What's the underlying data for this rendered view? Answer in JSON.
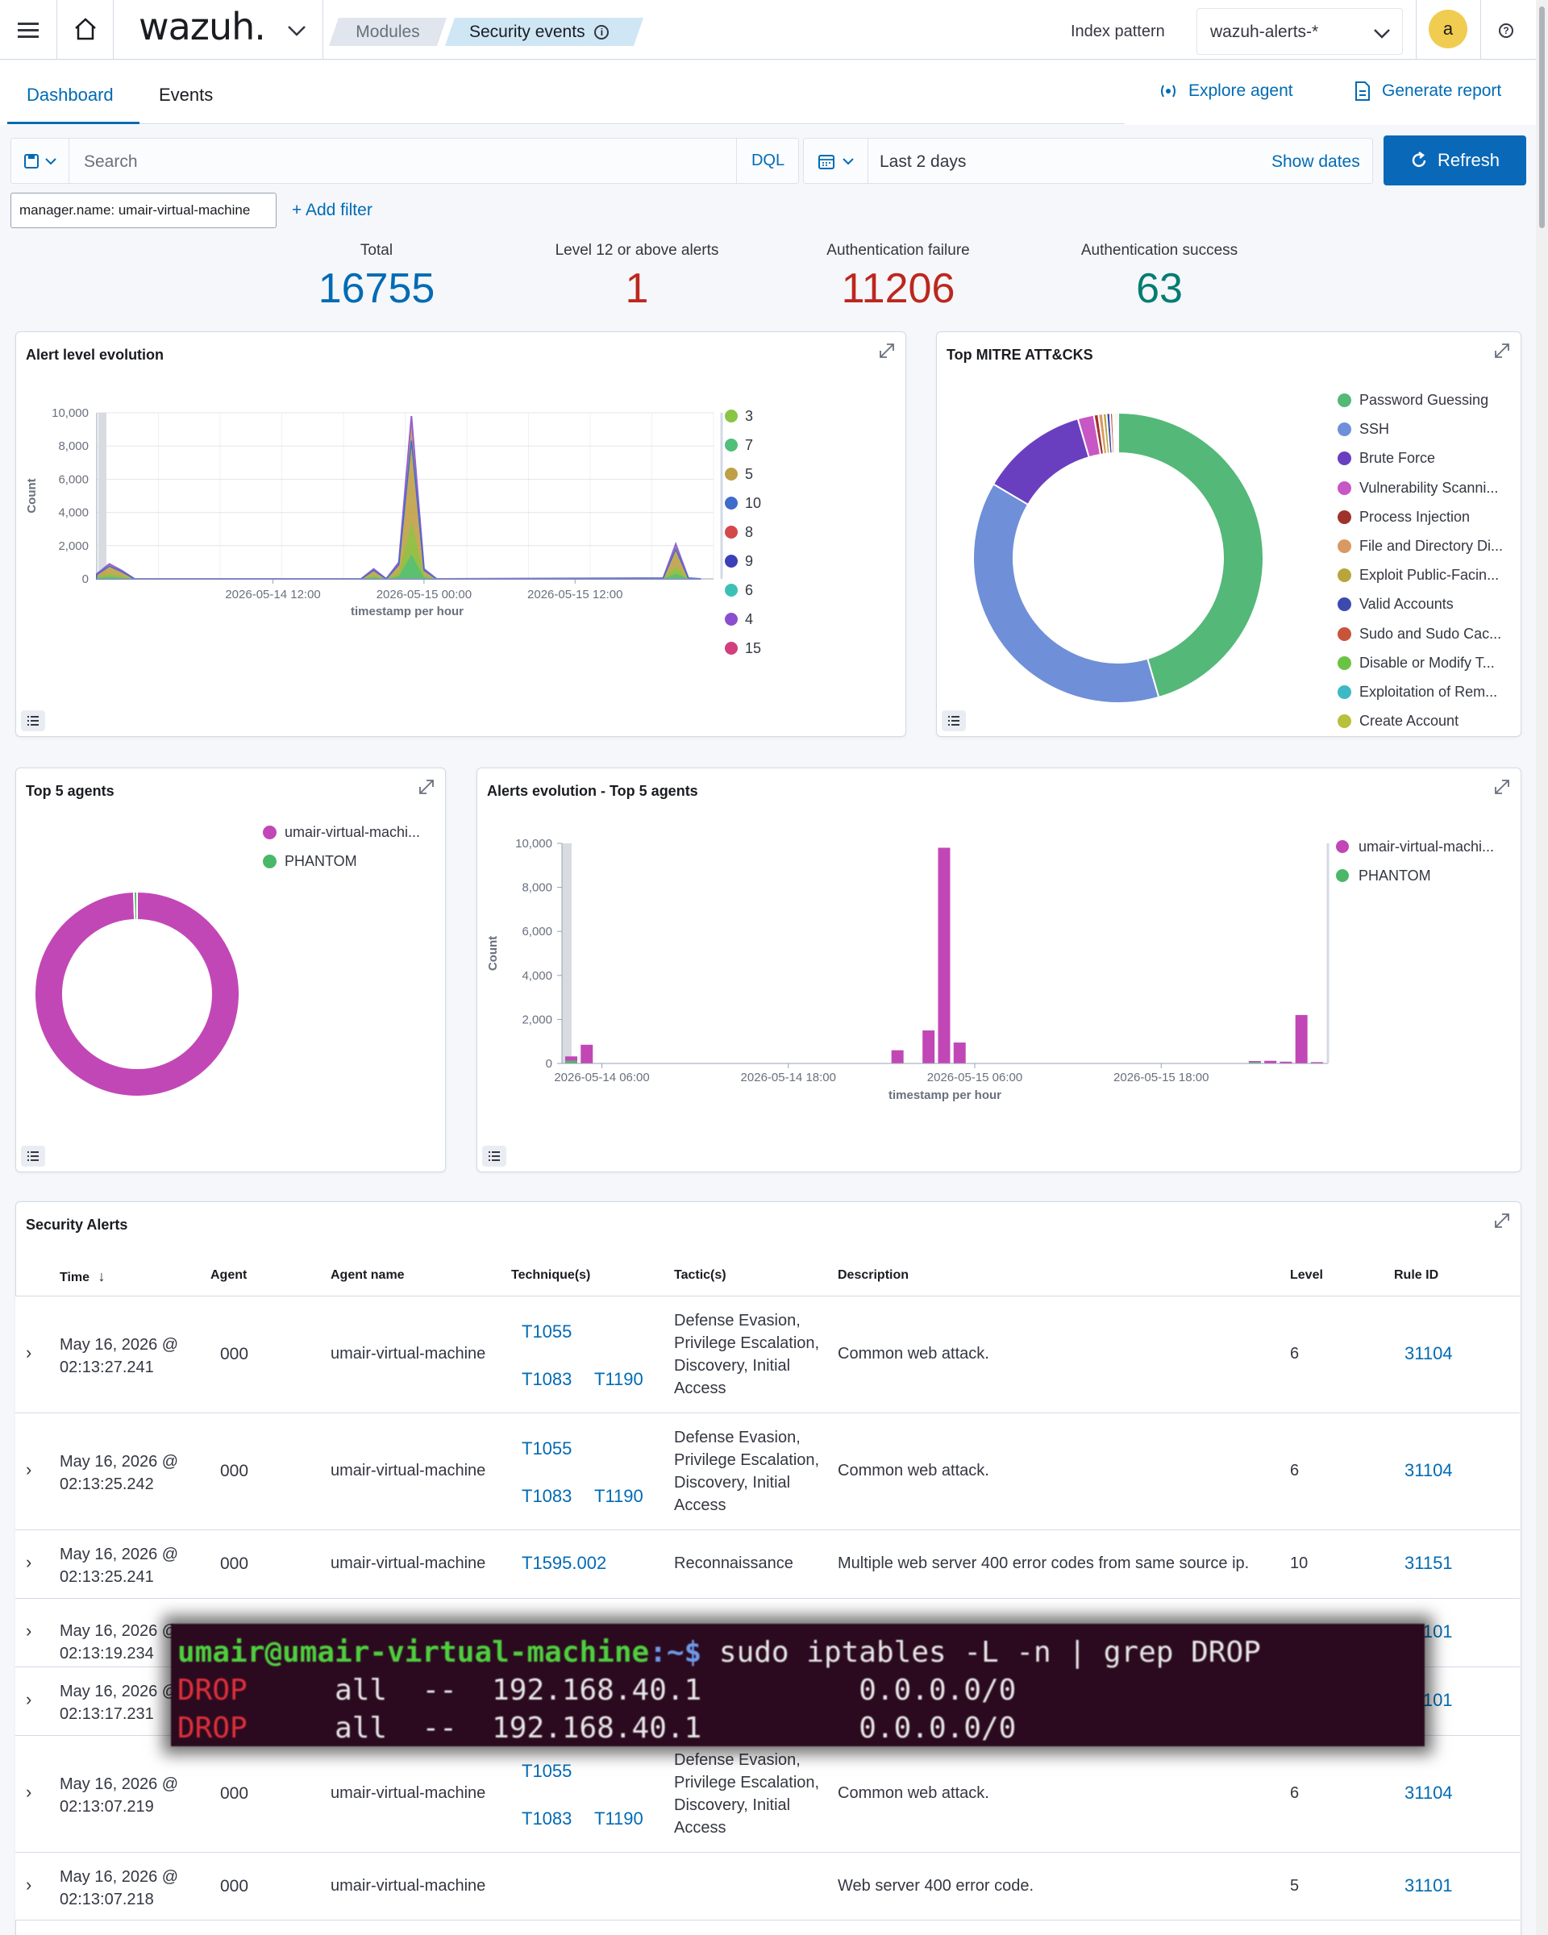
{
  "topbar": {
    "logo": "wazuh.",
    "breadcrumbs": [
      "Modules",
      "Security events"
    ],
    "index_pattern_label": "Index pattern",
    "index_pattern_value": "wazuh-alerts-*",
    "avatar": "a"
  },
  "tabs": {
    "dashboard": "Dashboard",
    "events": "Events",
    "active": "Dashboard"
  },
  "actions": {
    "explore_agent": "Explore agent",
    "generate_report": "Generate report"
  },
  "search": {
    "placeholder": "Search",
    "dql": "DQL",
    "date_range": "Last 2 days",
    "show_dates": "Show dates",
    "refresh": "Refresh"
  },
  "filters": {
    "active": "manager.name: umair-virtual-machine",
    "add": "+ Add filter"
  },
  "metrics": [
    {
      "label": "Total",
      "value": "16755",
      "color": "#006bb4"
    },
    {
      "label": "Level 12 or above alerts",
      "value": "1",
      "color": "#bd271e"
    },
    {
      "label": "Authentication failure",
      "value": "11206",
      "color": "#bd271e"
    },
    {
      "label": "Authentication success",
      "value": "63",
      "color": "#017d73"
    }
  ],
  "panels": {
    "alert_level": "Alert level evolution",
    "mitre": "Top MITRE ATT&CKS",
    "top_agents": "Top 5 agents",
    "agents_evolution": "Alerts evolution - Top 5 agents",
    "security_alerts": "Security Alerts"
  },
  "chart_data": [
    {
      "type": "area",
      "title": "Alert level evolution",
      "xlabel": "timestamp per hour",
      "ylabel": "Count",
      "ylim": [
        0,
        10000
      ],
      "yticks": [
        "0",
        "2,000",
        "4,000",
        "6,000",
        "8,000",
        "10,000"
      ],
      "xticks": [
        "2026-05-14 12:00",
        "2026-05-15 00:00",
        "2026-05-15 12:00"
      ],
      "legend": [
        {
          "name": "3",
          "color": "#8ac444"
        },
        {
          "name": "7",
          "color": "#4fbf7a"
        },
        {
          "name": "5",
          "color": "#c0a046"
        },
        {
          "name": "10",
          "color": "#3e6ccb"
        },
        {
          "name": "8",
          "color": "#d24a4a"
        },
        {
          "name": "9",
          "color": "#3b3fb8"
        },
        {
          "name": "6",
          "color": "#3cc0b5"
        },
        {
          "name": "4",
          "color": "#8a4fcf"
        },
        {
          "name": "15",
          "color": "#d13f7d"
        }
      ],
      "x_hours": [
        0,
        1,
        2,
        3,
        21,
        22,
        23,
        24,
        25,
        26,
        27,
        45,
        46,
        47,
        48
      ],
      "series_total": [
        300,
        900,
        500,
        0,
        0,
        600,
        0,
        1000,
        9800,
        600,
        0,
        50,
        2100,
        50,
        0
      ]
    },
    {
      "type": "pie",
      "title": "Top MITRE ATT&CKS",
      "labels": [
        "Password Guessing",
        "SSH",
        "Brute Force",
        "Vulnerability Scanni...",
        "Process Injection",
        "File and Directory Di...",
        "Exploit Public-Facin...",
        "Valid Accounts",
        "Sudo and Sudo Cac...",
        "Disable or Modify T...",
        "Exploitation of Rem...",
        "Create Account"
      ],
      "colors": [
        "#54b878",
        "#6f8fd8",
        "#6a3fbf",
        "#c757c4",
        "#a0322c",
        "#d89a62",
        "#b8a63c",
        "#3c4ab0",
        "#c8543a",
        "#6ac444",
        "#3cb9c4",
        "#b8c03c"
      ],
      "values": [
        45.5,
        38,
        12,
        1.8,
        0.5,
        0.5,
        0.4,
        0.4,
        0.3,
        0.2,
        0.2,
        0.2
      ]
    },
    {
      "type": "pie",
      "title": "Top 5 agents",
      "labels": [
        "umair-virtual-machi...",
        "PHANTOM"
      ],
      "colors": [
        "#c247b6",
        "#4ab868"
      ],
      "values": [
        99.5,
        0.5
      ]
    },
    {
      "type": "bar",
      "title": "Alerts evolution - Top 5 agents",
      "xlabel": "timestamp per hour",
      "ylabel": "Count",
      "ylim": [
        0,
        10000
      ],
      "yticks": [
        "0",
        "2,000",
        "4,000",
        "6,000",
        "8,000",
        "10,000"
      ],
      "xticks": [
        "2026-05-14 06:00",
        "2026-05-14 18:00",
        "2026-05-15 06:00",
        "2026-05-15 18:00"
      ],
      "legend": [
        {
          "name": "umair-virtual-machi...",
          "color": "#c247b6"
        },
        {
          "name": "PHANTOM",
          "color": "#4ab868"
        }
      ],
      "bars": [
        {
          "hour": 0,
          "umair": 200,
          "phantom": 120
        },
        {
          "hour": 1,
          "umair": 850,
          "phantom": 0
        },
        {
          "hour": 21,
          "umair": 600,
          "phantom": 0
        },
        {
          "hour": 23,
          "umair": 1500,
          "phantom": 0
        },
        {
          "hour": 24,
          "umair": 9800,
          "phantom": 0
        },
        {
          "hour": 25,
          "umair": 950,
          "phantom": 0
        },
        {
          "hour": 44,
          "umair": 50,
          "phantom": 60
        },
        {
          "hour": 45,
          "umair": 120,
          "phantom": 0
        },
        {
          "hour": 46,
          "umair": 80,
          "phantom": 0
        },
        {
          "hour": 47,
          "umair": 2200,
          "phantom": 0
        },
        {
          "hour": 48,
          "umair": 60,
          "phantom": 0
        }
      ]
    }
  ],
  "table": {
    "headers": [
      "Time",
      "Agent",
      "Agent name",
      "Technique(s)",
      "Tactic(s)",
      "Description",
      "Level",
      "Rule ID"
    ],
    "rows": [
      {
        "time": [
          "May 16, 2026 @",
          "02:13:27.241"
        ],
        "agent": "000",
        "agent_name": "umair-virtual-machine",
        "tech1": "T1055",
        "tech2": "T1083",
        "tech3": "T1190",
        "tactics": [
          "Defense Evasion,",
          "Privilege Escalation,",
          "Discovery, Initial",
          "Access"
        ],
        "desc": "Common web attack.",
        "level": "6",
        "rule": "31104"
      },
      {
        "time": [
          "May 16, 2026 @",
          "02:13:25.242"
        ],
        "agent": "000",
        "agent_name": "umair-virtual-machine",
        "tech1": "T1055",
        "tech2": "T1083",
        "tech3": "T1190",
        "tactics": [
          "Defense Evasion,",
          "Privilege Escalation,",
          "Discovery, Initial",
          "Access"
        ],
        "desc": "Common web attack.",
        "level": "6",
        "rule": "31104"
      },
      {
        "time": [
          "May 16, 2026 @",
          "02:13:25.241"
        ],
        "agent": "000",
        "agent_name": "umair-virtual-machine",
        "tech1": "T1595.002",
        "tactics": [
          "Reconnaissance"
        ],
        "desc": "Multiple web server 400 error codes from same source ip.",
        "level": "10",
        "rule": "31151"
      },
      {
        "time": [
          "May 16, 2026 @",
          "02:13:19.234"
        ],
        "rule": "31101"
      },
      {
        "time": [
          "May 16, 2026 @",
          "02:13:17.231"
        ],
        "rule": "31101"
      },
      {
        "time": [
          "May 16, 2026 @",
          "02:13:07.219"
        ],
        "agent": "000",
        "agent_name": "umair-virtual-machine",
        "tech1": "T1055",
        "tech2": "T1083",
        "tech3": "T1190",
        "tactics": [
          "Defense Evasion,",
          "Privilege Escalation,",
          "Discovery, Initial",
          "Access"
        ],
        "desc": "Common web attack.",
        "level": "6",
        "rule": "31104"
      },
      {
        "time": [
          "May 16, 2026 @",
          "02:13:07.218"
        ],
        "agent": "000",
        "agent_name": "umair-virtual-machine",
        "desc": "Web server 400 error code.",
        "level": "5",
        "rule": "31101"
      }
    ]
  },
  "terminal": {
    "prompt_user": "umair@umair-virtual-machine",
    "prompt_path": ":~$",
    "command": " sudo iptables -L -n | grep DROP",
    "lines": [
      {
        "target": "DROP",
        "rest": "     all  --  192.168.40.1         0.0.0.0/0"
      },
      {
        "target": "DROP",
        "rest": "     all  --  192.168.40.1         0.0.0.0/0"
      }
    ]
  }
}
